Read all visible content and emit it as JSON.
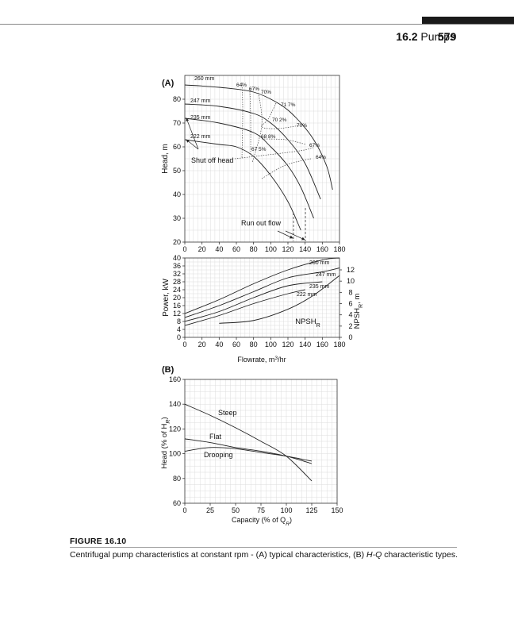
{
  "header": {
    "section": "16.2",
    "title": "Pumps",
    "page": "579"
  },
  "figure": {
    "label": "FIGURE 16.10",
    "caption_prefix": "Centrifugal pump characteristics at constant rpm - (A) typical characteristics, (B) ",
    "caption_em": "H-Q",
    "caption_suffix": " characteristic types."
  },
  "chart_data": [
    {
      "id": "A-head",
      "panel_label": "(A)",
      "type": "line",
      "ylabel": "Head, m",
      "xlabel": "",
      "xlim": [
        0,
        180
      ],
      "ylim": [
        20,
        90
      ],
      "xticks": [
        0,
        20,
        40,
        60,
        80,
        100,
        120,
        140,
        160,
        180
      ],
      "yticks": [
        20,
        30,
        40,
        50,
        60,
        70,
        80
      ],
      "grid": true,
      "series": [
        {
          "name": "260 mm",
          "x": [
            0,
            40,
            80,
            110,
            130,
            150,
            165,
            172
          ],
          "y": [
            86,
            85,
            83,
            78,
            72,
            63,
            52,
            42
          ]
        },
        {
          "name": "247 mm",
          "x": [
            0,
            40,
            80,
            100,
            120,
            140,
            158
          ],
          "y": [
            78,
            77,
            74,
            70,
            63,
            53,
            38
          ]
        },
        {
          "name": "235 mm",
          "x": [
            0,
            40,
            80,
            100,
            120,
            135,
            150
          ],
          "y": [
            72,
            70,
            66,
            60,
            52,
            43,
            30
          ]
        },
        {
          "name": "222 mm",
          "x": [
            0,
            40,
            60,
            80,
            100,
            120,
            135
          ],
          "y": [
            63,
            61,
            60,
            56,
            48,
            37,
            25
          ]
        }
      ],
      "efficiency_labels": [
        "64%",
        "67%",
        "70%",
        "71 7%",
        "70 2%",
        "70%",
        "68 8%",
        "67%",
        "67 5%",
        "64%"
      ],
      "annotations": [
        "Shut off head",
        "Run out flow"
      ]
    },
    {
      "id": "A-power",
      "type": "line",
      "ylabel": "Power, kW",
      "y2label": "NPSH",
      "y2label_sub": "R",
      "y2label_suffix": ", m",
      "xlabel": "Flowrate, m",
      "xlabel_sup": "3",
      "xlabel_suffix": "/hr",
      "xlim": [
        0,
        180
      ],
      "ylim": [
        0,
        40
      ],
      "y2lim": [
        0,
        12
      ],
      "xticks": [
        0,
        20,
        40,
        60,
        80,
        100,
        120,
        140,
        160,
        180
      ],
      "yticks": [
        0,
        4,
        8,
        12,
        16,
        20,
        24,
        28,
        32,
        36,
        40
      ],
      "y2ticks": [
        0,
        2,
        4,
        6,
        8,
        10,
        12
      ],
      "grid": true,
      "series": [
        {
          "name": "260 mm",
          "x": [
            0,
            40,
            80,
            120,
            160,
            180
          ],
          "y": [
            12,
            19,
            27,
            34,
            39,
            40
          ]
        },
        {
          "name": "247 mm",
          "x": [
            0,
            40,
            80,
            120,
            160,
            180
          ],
          "y": [
            10,
            16,
            23,
            30,
            33,
            35
          ]
        },
        {
          "name": "235 mm",
          "x": [
            0,
            40,
            80,
            120,
            160
          ],
          "y": [
            8,
            13,
            20,
            26,
            28
          ]
        },
        {
          "name": "222 mm",
          "x": [
            0,
            40,
            80,
            120,
            140
          ],
          "y": [
            6,
            11,
            17,
            22,
            24
          ]
        }
      ],
      "npsh_series": {
        "name": "NPSH",
        "name_sub": "R",
        "x": [
          40,
          80,
          120,
          150,
          180
        ],
        "y2": [
          2.5,
          3,
          5,
          7.5,
          11
        ]
      }
    },
    {
      "id": "B",
      "panel_label": "(B)",
      "type": "line",
      "title": "",
      "ylabel": "Head (% of H",
      "ylabel_sub": "R",
      "ylabel_suffix": ")",
      "xlabel": "Capacity (% of Q",
      "xlabel_sub": "R",
      "xlabel_suffix": ")",
      "xlim": [
        0,
        150
      ],
      "ylim": [
        60,
        160
      ],
      "xticks": [
        0,
        25,
        50,
        75,
        100,
        125,
        150
      ],
      "yticks": [
        60,
        80,
        100,
        120,
        140,
        160
      ],
      "grid": true,
      "series": [
        {
          "name": "Steep",
          "x": [
            0,
            25,
            50,
            75,
            100,
            125
          ],
          "y": [
            140,
            131,
            121,
            110,
            98,
            78
          ]
        },
        {
          "name": "Flat",
          "x": [
            0,
            25,
            50,
            75,
            100,
            125
          ],
          "y": [
            112,
            109,
            105,
            102,
            98,
            92
          ]
        },
        {
          "name": "Drooping",
          "x": [
            0,
            25,
            50,
            75,
            100,
            125
          ],
          "y": [
            102,
            105,
            104,
            101,
            98,
            94
          ]
        }
      ]
    }
  ]
}
